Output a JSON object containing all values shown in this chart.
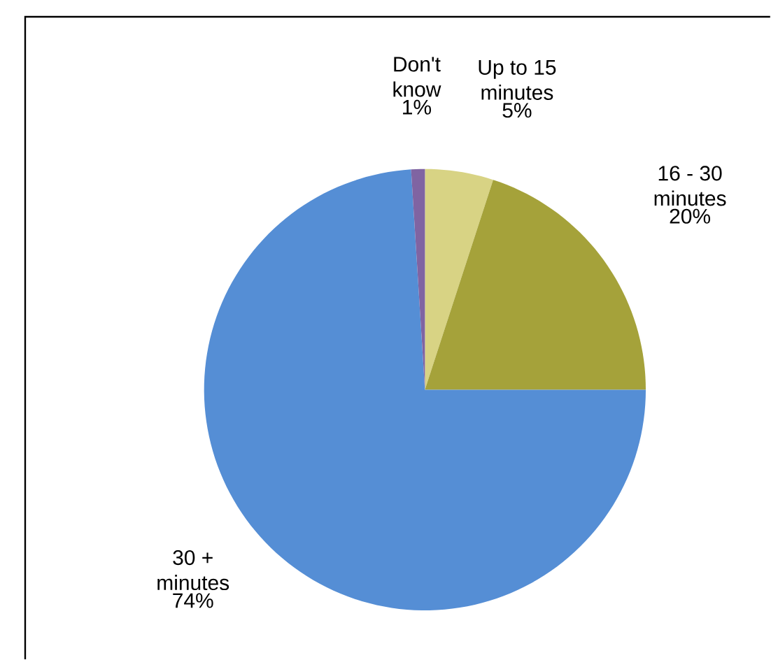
{
  "chart_data": {
    "type": "pie",
    "categories": [
      "Up to 15 minutes",
      "16 - 30 minutes",
      "30 + minutes",
      "Don't know"
    ],
    "values": [
      5,
      20,
      74,
      1
    ],
    "colors": [
      "#d8d384",
      "#a5a23a",
      "#558ed5",
      "#8064a2"
    ],
    "value_labels": [
      "5%",
      "20%",
      "74%",
      "1%"
    ]
  }
}
